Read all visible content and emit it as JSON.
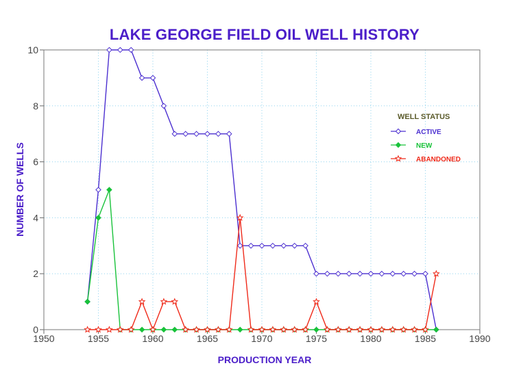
{
  "chart_data": {
    "type": "line",
    "title": "LAKE GEORGE FIELD OIL WELL HISTORY",
    "xlabel": "PRODUCTION YEAR",
    "ylabel": "NUMBER OF WELLS",
    "xlim": [
      1950,
      1990
    ],
    "ylim": [
      0,
      10
    ],
    "x_ticks": [
      "1950",
      "1955",
      "1960",
      "1965",
      "1970",
      "1975",
      "1980",
      "1985",
      "1990"
    ],
    "y_ticks": [
      "0",
      "2",
      "4",
      "6",
      "8",
      "10"
    ],
    "grid": true,
    "legend": {
      "title": "WELL STATUS",
      "placement": "right"
    },
    "series": [
      {
        "name": "ACTIVE",
        "color": "#4b2fd0",
        "marker": "diamond-open",
        "x": [
          1954,
          1955,
          1956,
          1957,
          1958,
          1959,
          1960,
          1961,
          1962,
          1963,
          1964,
          1965,
          1966,
          1967,
          1968,
          1969,
          1970,
          1971,
          1972,
          1973,
          1974,
          1975,
          1976,
          1977,
          1978,
          1979,
          1980,
          1981,
          1982,
          1983,
          1984,
          1985,
          1986
        ],
        "y": [
          1,
          5,
          10,
          10,
          10,
          9,
          9,
          8,
          7,
          7,
          7,
          7,
          7,
          7,
          3,
          3,
          3,
          3,
          3,
          3,
          3,
          2,
          2,
          2,
          2,
          2,
          2,
          2,
          2,
          2,
          2,
          2,
          0
        ]
      },
      {
        "name": "NEW",
        "color": "#18c23a",
        "marker": "diamond-filled",
        "x": [
          1954,
          1955,
          1956,
          1957,
          1958,
          1959,
          1960,
          1961,
          1962,
          1963,
          1964,
          1965,
          1966,
          1967,
          1968,
          1969,
          1970,
          1971,
          1972,
          1973,
          1974,
          1975,
          1976,
          1977,
          1978,
          1979,
          1980,
          1981,
          1982,
          1983,
          1984,
          1985,
          1986
        ],
        "y": [
          1,
          4,
          5,
          0,
          0,
          0,
          0,
          0,
          0,
          0,
          0,
          0,
          0,
          0,
          0,
          0,
          0,
          0,
          0,
          0,
          0,
          0,
          0,
          0,
          0,
          0,
          0,
          0,
          0,
          0,
          0,
          0,
          0
        ]
      },
      {
        "name": "ABANDONED",
        "color": "#ef2a1a",
        "marker": "star-open",
        "x": [
          1954,
          1955,
          1956,
          1957,
          1958,
          1959,
          1960,
          1961,
          1962,
          1963,
          1964,
          1965,
          1966,
          1967,
          1968,
          1969,
          1970,
          1971,
          1972,
          1973,
          1974,
          1975,
          1976,
          1977,
          1978,
          1979,
          1980,
          1981,
          1982,
          1983,
          1984,
          1985,
          1986
        ],
        "y": [
          0,
          0,
          0,
          0,
          0,
          1,
          0,
          1,
          1,
          0,
          0,
          0,
          0,
          0,
          4,
          0,
          0,
          0,
          0,
          0,
          0,
          1,
          0,
          0,
          0,
          0,
          0,
          0,
          0,
          0,
          0,
          0,
          2
        ]
      }
    ]
  }
}
